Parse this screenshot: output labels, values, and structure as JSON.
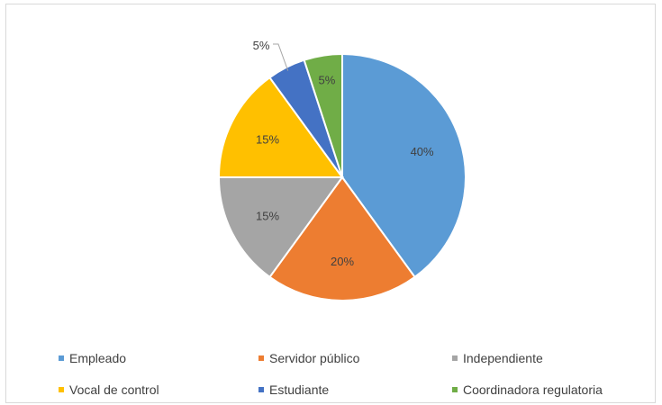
{
  "chart_data": {
    "type": "pie",
    "slices": [
      {
        "name": "Empleado",
        "value": 40,
        "label": "40%",
        "color": "#5b9bd5"
      },
      {
        "name": "Servidor público",
        "value": 20,
        "label": "20%",
        "color": "#ed7d31"
      },
      {
        "name": "Independiente",
        "value": 15,
        "label": "15%",
        "color": "#a5a5a5"
      },
      {
        "name": "Vocal de control",
        "value": 15,
        "label": "15%",
        "color": "#ffc000"
      },
      {
        "name": "Estudiante",
        "value": 5,
        "label": "5%",
        "color": "#4472c4"
      },
      {
        "name": "Coordinadora regulatoria",
        "value": 5,
        "label": "5%",
        "color": "#70ad47"
      }
    ],
    "start_angle": "12 o'clock",
    "direction": "clockwise",
    "legend_position": "bottom",
    "label_color": "#404040"
  }
}
